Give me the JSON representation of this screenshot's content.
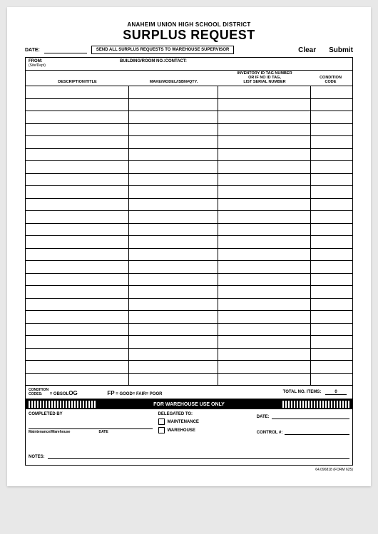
{
  "header": {
    "org": "ANAHEIM UNION HIGH SCHOOL DISTRICT",
    "title": "SURPLUS REQUEST"
  },
  "topRow": {
    "dateLabel": "DATE:",
    "instruction": "SEND ALL SURPLUS REQUESTS TO WAREHOUSE SUPERVISOR",
    "clearBtn": "Clear",
    "submitBtn": "Submit"
  },
  "fromRow": {
    "label": "FROM:",
    "sub": "(Site/Dept)",
    "building": "BUILDING/ROOM NO.:CONTACT:"
  },
  "columns": {
    "desc": "DESCRIPTION/TITLE",
    "make": "MAKE/MODEL/ISBN#QTY.",
    "inv": "INVENTORY ID TAG NUMBER\nOR IF NO ID TAG,\nLIST SERIAL NUMBER",
    "cond": "CONDITION\nCODE"
  },
  "codesRow": {
    "label1": "CONDITION",
    "label2": "CODES:",
    "obsol": "= OBSOL",
    "og": "OG",
    "fp": "FP",
    "goodFair": "= GOOD= FAIR= POOR",
    "totalLabel": "TOTAL NO. ITEMS:",
    "totalVal": "0"
  },
  "warehouse": {
    "banner": "FOR WAREHOUSE USE ONLY",
    "completedBy": "COMPLETED BY",
    "maintWarehouse": "Maintenance/Warehouse",
    "dateSmall": "DATE",
    "delegated": "DELEGATED TO:",
    "maintenance": "MAINTENANCE",
    "warehouseOpt": "WAREHOUSE",
    "dateLabel": "DATE:",
    "controlLabel": "CONTROL #:",
    "notes": "NOTES:"
  },
  "footer": "64.096818 (FORM 625)",
  "rowCount": 24,
  "stripeCount": 24
}
